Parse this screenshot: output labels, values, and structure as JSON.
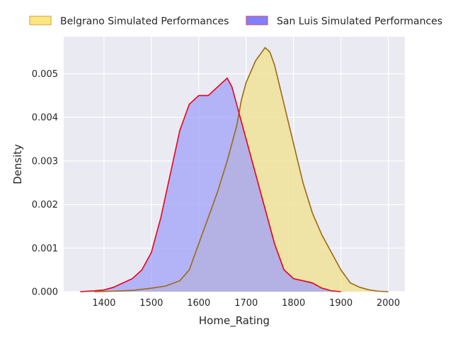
{
  "chart_data": {
    "type": "area",
    "title": "",
    "xlabel": "Home_Rating",
    "ylabel": "Density",
    "xlim": [
      1315,
      2035
    ],
    "ylim": [
      0,
      0.00585
    ],
    "xticks": [
      1400,
      1500,
      1600,
      1700,
      1800,
      1900,
      2000
    ],
    "yticks": [
      0.0,
      0.001,
      0.002,
      0.003,
      0.004,
      0.005
    ],
    "ytick_labels": [
      "0.000",
      "0.001",
      "0.002",
      "0.003",
      "0.004",
      "0.005"
    ],
    "grid": true,
    "legend_position": "top",
    "series": [
      {
        "name": "Belgrano Simulated Performances",
        "fill": "#f0e08c",
        "line": "#9c6a10",
        "legend_fill": "#ffe680",
        "legend_edge": "#c8a040",
        "points": [
          [
            1380,
            0.0
          ],
          [
            1420,
            1e-05
          ],
          [
            1460,
            3e-05
          ],
          [
            1500,
            8e-05
          ],
          [
            1530,
            0.00013
          ],
          [
            1560,
            0.00025
          ],
          [
            1580,
            0.0005
          ],
          [
            1600,
            0.0011
          ],
          [
            1620,
            0.0017
          ],
          [
            1640,
            0.0023
          ],
          [
            1660,
            0.003
          ],
          [
            1680,
            0.0038
          ],
          [
            1690,
            0.0044
          ],
          [
            1700,
            0.0048
          ],
          [
            1720,
            0.0053
          ],
          [
            1740,
            0.0056
          ],
          [
            1750,
            0.0055
          ],
          [
            1760,
            0.0052
          ],
          [
            1780,
            0.0043
          ],
          [
            1800,
            0.0034
          ],
          [
            1820,
            0.0025
          ],
          [
            1840,
            0.0018
          ],
          [
            1860,
            0.0013
          ],
          [
            1880,
            0.0009
          ],
          [
            1900,
            0.0005
          ],
          [
            1920,
            0.0002
          ],
          [
            1940,
            0.0001
          ],
          [
            1960,
            4e-05
          ],
          [
            1980,
            1e-05
          ],
          [
            2000,
            0.0
          ]
        ]
      },
      {
        "name": "San Luis Simulated Performances",
        "fill": "#a0a0f8",
        "line": "#e8001c",
        "legend_fill": "#8080ff",
        "legend_edge": "#d04070",
        "points": [
          [
            1350,
            0.0
          ],
          [
            1380,
            2e-05
          ],
          [
            1400,
            4e-05
          ],
          [
            1420,
            0.0001
          ],
          [
            1440,
            0.0002
          ],
          [
            1460,
            0.0003
          ],
          [
            1480,
            0.0005
          ],
          [
            1500,
            0.0009
          ],
          [
            1520,
            0.0017
          ],
          [
            1540,
            0.0027
          ],
          [
            1560,
            0.0037
          ],
          [
            1580,
            0.0043
          ],
          [
            1600,
            0.0045
          ],
          [
            1620,
            0.0045
          ],
          [
            1640,
            0.0047
          ],
          [
            1660,
            0.0049
          ],
          [
            1670,
            0.0047
          ],
          [
            1680,
            0.0043
          ],
          [
            1700,
            0.0035
          ],
          [
            1720,
            0.0027
          ],
          [
            1740,
            0.0019
          ],
          [
            1760,
            0.0011
          ],
          [
            1780,
            0.0005
          ],
          [
            1800,
            0.0003
          ],
          [
            1820,
            0.00025
          ],
          [
            1840,
            0.0002
          ],
          [
            1860,
            8e-05
          ],
          [
            1880,
            2e-05
          ],
          [
            1900,
            0.0
          ]
        ]
      }
    ]
  }
}
